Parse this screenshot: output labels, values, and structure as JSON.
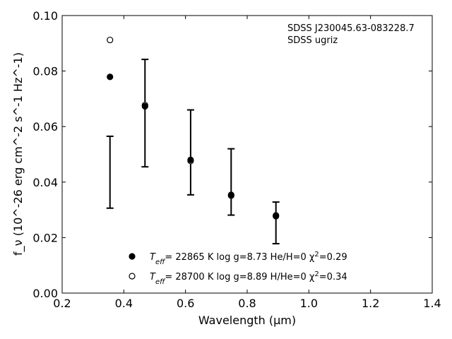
{
  "chart_data": {
    "type": "scatter",
    "annotations": [
      "SDSS J230045.63-083228.7",
      "SDSS ugriz"
    ],
    "xlabel": "Wavelength (μm)",
    "ylabel": "f_ν (10^-26 erg cm^-2 s^-1 Hz^-1)",
    "xlim": [
      0.2,
      1.4
    ],
    "ylim": [
      0.0,
      0.1
    ],
    "xticks": [
      "0.2",
      "0.4",
      "0.6",
      "0.8",
      "1.0",
      "1.2",
      "1.4"
    ],
    "yticks": [
      "0.00",
      "0.02",
      "0.04",
      "0.06",
      "0.08",
      "0.10"
    ],
    "grid": false,
    "legend_position": "bottom-center",
    "observed": {
      "x": [
        0.3551,
        0.4686,
        0.6166,
        0.748,
        0.8932
      ],
      "y_low": [
        0.0306,
        0.0455,
        0.0354,
        0.0281,
        0.0178
      ],
      "y_high": [
        0.0565,
        0.0842,
        0.066,
        0.052,
        0.0328
      ]
    },
    "series": [
      {
        "name": "T_eff= 22865 K  log g=8.73  He/H=0  χ²=0.29",
        "legend_parts": {
          "pre": "T",
          "sub": "eff",
          "mid": "= 22865 K  log g=8.73  He/H=0  χ",
          "sup": "2",
          "post": "=0.29"
        },
        "marker": "filled-circle",
        "color": "#000000",
        "x": [
          0.3551,
          0.4686,
          0.6166,
          0.748,
          0.8932
        ],
        "y": [
          0.0779,
          0.0673,
          0.048,
          0.0354,
          0.028
        ]
      },
      {
        "name": "T_eff= 28700 K  log g=8.89  H/He=0  χ²=0.34",
        "legend_parts": {
          "pre": "T",
          "sub": "eff",
          "mid": "= 28700 K  log g=8.89  H/He=0  χ",
          "sup": "2",
          "post": "=0.34"
        },
        "marker": "open-circle",
        "color": "#000000",
        "x": [
          0.3551,
          0.4686,
          0.6166,
          0.748,
          0.8932
        ],
        "y": [
          0.0912,
          0.0677,
          0.0476,
          0.0351,
          0.0277
        ]
      }
    ]
  }
}
